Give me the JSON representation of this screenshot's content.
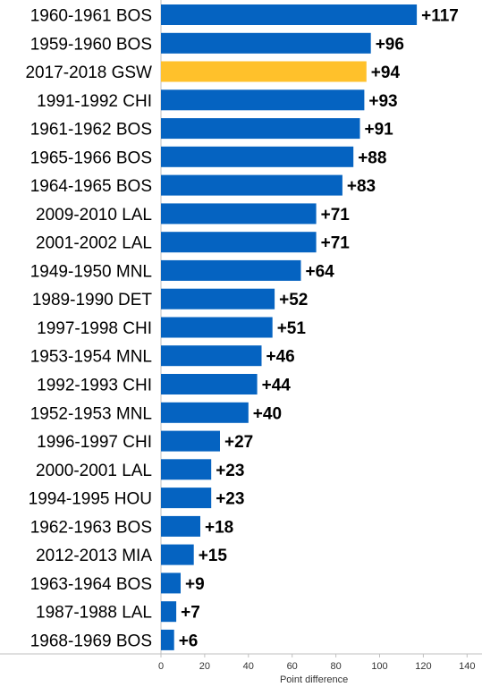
{
  "chart_data": {
    "type": "bar",
    "orientation": "horizontal",
    "categories": [
      "1960-1961 BOS",
      "1959-1960 BOS",
      "2017-2018 GSW",
      "1991-1992 CHI",
      "1961-1962 BOS",
      "1965-1966 BOS",
      "1964-1965 BOS",
      "2009-2010 LAL",
      "2001-2002 LAL",
      "1949-1950 MNL",
      "1989-1990 DET",
      "1997-1998 CHI",
      "1953-1954 MNL",
      "1992-1993 CHI",
      "1952-1953 MNL",
      "1996-1997 CHI",
      "2000-2001 LAL",
      "1994-1995 HOU",
      "1962-1963 BOS",
      "2012-2013 MIA",
      "1963-1964 BOS",
      "1987-1988 LAL",
      "1968-1969 BOS"
    ],
    "values": [
      117,
      96,
      94,
      93,
      91,
      88,
      83,
      71,
      71,
      64,
      52,
      51,
      46,
      44,
      40,
      27,
      23,
      23,
      18,
      15,
      9,
      7,
      6
    ],
    "value_labels": [
      "+117",
      "+96",
      "+94",
      "+93",
      "+91",
      "+88",
      "+83",
      "+71",
      "+71",
      "+64",
      "+52",
      "+51",
      "+46",
      "+44",
      "+40",
      "+27",
      "+23",
      "+23",
      "+18",
      "+15",
      "+9",
      "+7",
      "+6"
    ],
    "highlight_index": 2,
    "xlabel": "Point difference",
    "ylabel": "",
    "xlim": [
      0,
      140
    ],
    "xticks": [
      "0",
      "20",
      "40",
      "60",
      "80",
      "100",
      "120",
      "140"
    ],
    "grid": false,
    "colors": {
      "bar": "#0563c1",
      "highlight": "#ffc12b",
      "axis": "#bfbfbf"
    }
  }
}
